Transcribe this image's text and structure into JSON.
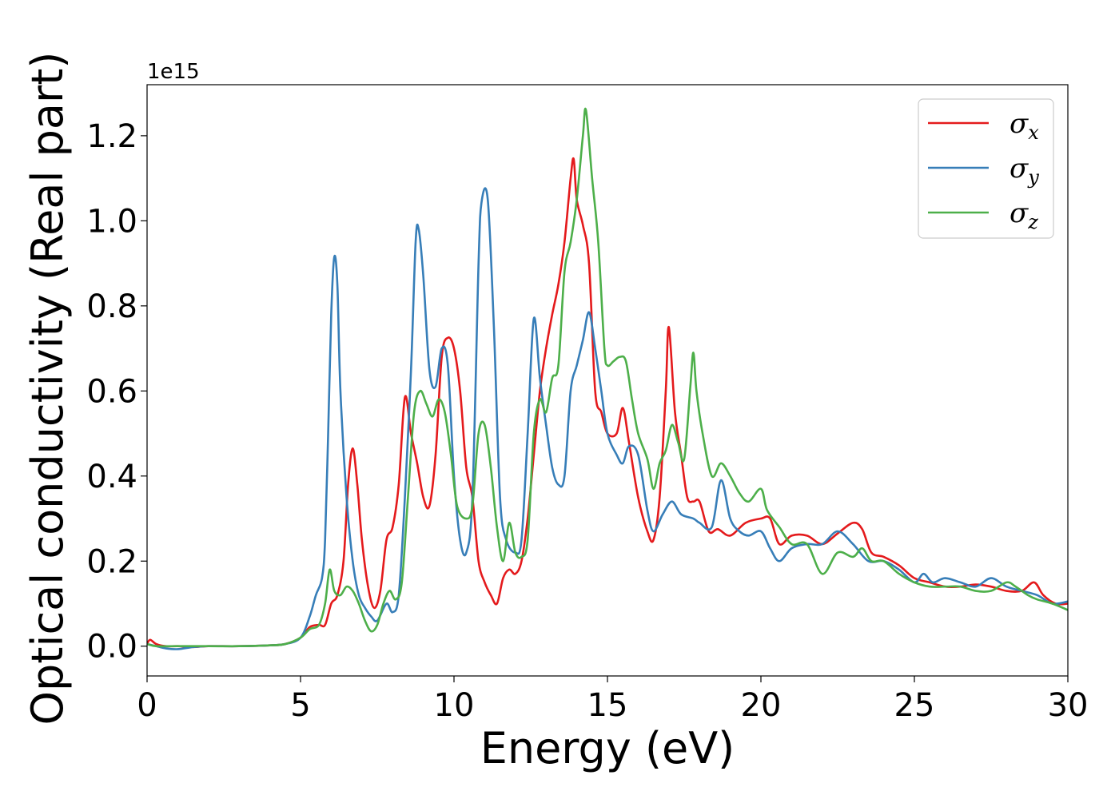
{
  "chart_data": {
    "type": "line",
    "xlabel": "Energy (eV)",
    "ylabel": "Optical conductivity (Real part)",
    "y_offset_label": "1e15",
    "xlim": [
      0,
      30
    ],
    "ylim": [
      -0.07,
      1.32
    ],
    "y_scale_factor": 1000000000000000.0,
    "grid": false,
    "legend_position": "top-right",
    "x_ticks": [
      0,
      5,
      10,
      15,
      20,
      25,
      30
    ],
    "y_ticks": [
      0.0,
      0.2,
      0.4,
      0.6,
      0.8,
      1.0,
      1.2
    ],
    "x_tick_labels": [
      "0",
      "5",
      "10",
      "15",
      "20",
      "25",
      "30"
    ],
    "y_tick_labels": [
      "0.0",
      "0.2",
      "0.4",
      "0.6",
      "0.8",
      "1.0",
      "1.2"
    ],
    "series": [
      {
        "name": "σx",
        "name_base": "σ",
        "name_sub": "x",
        "color": "#e41a1c",
        "points": [
          [
            0,
            0.005
          ],
          [
            0.1,
            0.015
          ],
          [
            0.3,
            0.005
          ],
          [
            0.6,
            0.0
          ],
          [
            1,
            0.0
          ],
          [
            1.5,
            -0.002
          ],
          [
            2,
            0.0
          ],
          [
            3,
            0.0
          ],
          [
            4,
            0.002
          ],
          [
            4.5,
            0.005
          ],
          [
            5,
            0.02
          ],
          [
            5.3,
            0.045
          ],
          [
            5.6,
            0.05
          ],
          [
            5.8,
            0.05
          ],
          [
            6.0,
            0.1
          ],
          [
            6.2,
            0.12
          ],
          [
            6.4,
            0.2
          ],
          [
            6.55,
            0.38
          ],
          [
            6.7,
            0.465
          ],
          [
            6.85,
            0.38
          ],
          [
            7.0,
            0.25
          ],
          [
            7.2,
            0.14
          ],
          [
            7.4,
            0.09
          ],
          [
            7.6,
            0.13
          ],
          [
            7.8,
            0.25
          ],
          [
            8.0,
            0.28
          ],
          [
            8.2,
            0.38
          ],
          [
            8.4,
            0.585
          ],
          [
            8.6,
            0.5
          ],
          [
            8.8,
            0.43
          ],
          [
            9.0,
            0.35
          ],
          [
            9.2,
            0.33
          ],
          [
            9.4,
            0.45
          ],
          [
            9.6,
            0.68
          ],
          [
            9.8,
            0.725
          ],
          [
            10.0,
            0.7
          ],
          [
            10.2,
            0.6
          ],
          [
            10.4,
            0.42
          ],
          [
            10.6,
            0.35
          ],
          [
            10.8,
            0.2
          ],
          [
            11.0,
            0.15
          ],
          [
            11.2,
            0.12
          ],
          [
            11.4,
            0.1
          ],
          [
            11.6,
            0.16
          ],
          [
            11.8,
            0.18
          ],
          [
            12.0,
            0.17
          ],
          [
            12.2,
            0.2
          ],
          [
            12.4,
            0.3
          ],
          [
            12.6,
            0.45
          ],
          [
            12.8,
            0.6
          ],
          [
            13.0,
            0.7
          ],
          [
            13.2,
            0.78
          ],
          [
            13.4,
            0.85
          ],
          [
            13.6,
            0.95
          ],
          [
            13.8,
            1.1
          ],
          [
            13.9,
            1.145
          ],
          [
            14.0,
            1.05
          ],
          [
            14.2,
            0.99
          ],
          [
            14.4,
            0.9
          ],
          [
            14.6,
            0.6
          ],
          [
            14.8,
            0.55
          ],
          [
            15.0,
            0.5
          ],
          [
            15.3,
            0.5
          ],
          [
            15.5,
            0.56
          ],
          [
            15.7,
            0.48
          ],
          [
            16.0,
            0.35
          ],
          [
            16.3,
            0.27
          ],
          [
            16.5,
            0.25
          ],
          [
            16.7,
            0.35
          ],
          [
            16.9,
            0.6
          ],
          [
            17.0,
            0.75
          ],
          [
            17.2,
            0.55
          ],
          [
            17.4,
            0.45
          ],
          [
            17.6,
            0.35
          ],
          [
            17.8,
            0.34
          ],
          [
            18.0,
            0.34
          ],
          [
            18.3,
            0.27
          ],
          [
            18.6,
            0.275
          ],
          [
            19.0,
            0.26
          ],
          [
            19.5,
            0.29
          ],
          [
            20.0,
            0.3
          ],
          [
            20.3,
            0.3
          ],
          [
            20.6,
            0.24
          ],
          [
            21.0,
            0.26
          ],
          [
            21.5,
            0.26
          ],
          [
            22.0,
            0.24
          ],
          [
            22.5,
            0.265
          ],
          [
            23.0,
            0.29
          ],
          [
            23.3,
            0.275
          ],
          [
            23.6,
            0.22
          ],
          [
            24.0,
            0.21
          ],
          [
            24.5,
            0.19
          ],
          [
            25.0,
            0.16
          ],
          [
            25.5,
            0.15
          ],
          [
            26.0,
            0.14
          ],
          [
            26.5,
            0.14
          ],
          [
            27.0,
            0.145
          ],
          [
            27.5,
            0.14
          ],
          [
            28.0,
            0.13
          ],
          [
            28.5,
            0.13
          ],
          [
            28.9,
            0.15
          ],
          [
            29.2,
            0.12
          ],
          [
            29.6,
            0.1
          ],
          [
            30.0,
            0.1
          ]
        ]
      },
      {
        "name": "σy",
        "name_base": "σ",
        "name_sub": "y",
        "color": "#377eb8",
        "points": [
          [
            0,
            0.005
          ],
          [
            0.3,
            0.0
          ],
          [
            0.6,
            -0.005
          ],
          [
            1,
            -0.007
          ],
          [
            1.5,
            -0.002
          ],
          [
            2,
            0.0
          ],
          [
            3,
            0.0
          ],
          [
            4,
            0.002
          ],
          [
            4.5,
            0.005
          ],
          [
            5,
            0.02
          ],
          [
            5.3,
            0.07
          ],
          [
            5.5,
            0.12
          ],
          [
            5.7,
            0.16
          ],
          [
            5.8,
            0.25
          ],
          [
            5.9,
            0.5
          ],
          [
            6.0,
            0.78
          ],
          [
            6.1,
            0.915
          ],
          [
            6.2,
            0.85
          ],
          [
            6.3,
            0.6
          ],
          [
            6.5,
            0.35
          ],
          [
            6.7,
            0.2
          ],
          [
            6.9,
            0.12
          ],
          [
            7.1,
            0.09
          ],
          [
            7.3,
            0.07
          ],
          [
            7.5,
            0.06
          ],
          [
            7.8,
            0.1
          ],
          [
            8.0,
            0.08
          ],
          [
            8.2,
            0.12
          ],
          [
            8.4,
            0.35
          ],
          [
            8.6,
            0.65
          ],
          [
            8.75,
            0.95
          ],
          [
            8.85,
            0.98
          ],
          [
            9.0,
            0.87
          ],
          [
            9.2,
            0.65
          ],
          [
            9.4,
            0.61
          ],
          [
            9.6,
            0.7
          ],
          [
            9.8,
            0.66
          ],
          [
            10.0,
            0.4
          ],
          [
            10.2,
            0.25
          ],
          [
            10.4,
            0.22
          ],
          [
            10.6,
            0.35
          ],
          [
            10.8,
            0.9
          ],
          [
            10.9,
            1.045
          ],
          [
            11.1,
            1.05
          ],
          [
            11.3,
            0.75
          ],
          [
            11.5,
            0.35
          ],
          [
            11.7,
            0.25
          ],
          [
            12.0,
            0.22
          ],
          [
            12.2,
            0.25
          ],
          [
            12.4,
            0.5
          ],
          [
            12.6,
            0.77
          ],
          [
            12.8,
            0.63
          ],
          [
            13.0,
            0.52
          ],
          [
            13.2,
            0.42
          ],
          [
            13.4,
            0.38
          ],
          [
            13.6,
            0.4
          ],
          [
            13.8,
            0.6
          ],
          [
            14.0,
            0.66
          ],
          [
            14.2,
            0.72
          ],
          [
            14.4,
            0.785
          ],
          [
            14.6,
            0.7
          ],
          [
            14.8,
            0.6
          ],
          [
            15.0,
            0.5
          ],
          [
            15.3,
            0.45
          ],
          [
            15.5,
            0.43
          ],
          [
            15.7,
            0.47
          ],
          [
            16.0,
            0.45
          ],
          [
            16.3,
            0.32
          ],
          [
            16.5,
            0.27
          ],
          [
            16.8,
            0.31
          ],
          [
            17.1,
            0.34
          ],
          [
            17.4,
            0.31
          ],
          [
            17.8,
            0.3
          ],
          [
            18.0,
            0.29
          ],
          [
            18.4,
            0.28
          ],
          [
            18.7,
            0.39
          ],
          [
            19.0,
            0.3
          ],
          [
            19.3,
            0.27
          ],
          [
            19.6,
            0.26
          ],
          [
            20.0,
            0.27
          ],
          [
            20.3,
            0.23
          ],
          [
            20.6,
            0.2
          ],
          [
            21.0,
            0.23
          ],
          [
            21.5,
            0.24
          ],
          [
            22.0,
            0.24
          ],
          [
            22.5,
            0.27
          ],
          [
            23.0,
            0.24
          ],
          [
            23.5,
            0.2
          ],
          [
            24.0,
            0.2
          ],
          [
            24.5,
            0.18
          ],
          [
            25.0,
            0.15
          ],
          [
            25.3,
            0.17
          ],
          [
            25.6,
            0.15
          ],
          [
            26.0,
            0.16
          ],
          [
            26.5,
            0.15
          ],
          [
            27.0,
            0.14
          ],
          [
            27.5,
            0.16
          ],
          [
            28.0,
            0.14
          ],
          [
            28.5,
            0.13
          ],
          [
            29.0,
            0.12
          ],
          [
            29.5,
            0.1
          ],
          [
            30.0,
            0.105
          ]
        ]
      },
      {
        "name": "σz",
        "name_base": "σ",
        "name_sub": "z",
        "color": "#4daf4a",
        "points": [
          [
            0,
            0.005
          ],
          [
            0.3,
            0.0
          ],
          [
            1,
            0.0
          ],
          [
            2,
            0.0
          ],
          [
            3,
            0.0
          ],
          [
            4,
            0.002
          ],
          [
            4.5,
            0.005
          ],
          [
            5,
            0.02
          ],
          [
            5.3,
            0.04
          ],
          [
            5.6,
            0.05
          ],
          [
            5.8,
            0.1
          ],
          [
            5.95,
            0.18
          ],
          [
            6.1,
            0.13
          ],
          [
            6.3,
            0.12
          ],
          [
            6.5,
            0.14
          ],
          [
            6.7,
            0.13
          ],
          [
            6.9,
            0.1
          ],
          [
            7.1,
            0.06
          ],
          [
            7.3,
            0.035
          ],
          [
            7.5,
            0.05
          ],
          [
            7.7,
            0.1
          ],
          [
            7.9,
            0.13
          ],
          [
            8.1,
            0.11
          ],
          [
            8.3,
            0.15
          ],
          [
            8.5,
            0.35
          ],
          [
            8.7,
            0.55
          ],
          [
            8.9,
            0.6
          ],
          [
            9.1,
            0.57
          ],
          [
            9.3,
            0.54
          ],
          [
            9.5,
            0.58
          ],
          [
            9.7,
            0.55
          ],
          [
            9.9,
            0.45
          ],
          [
            10.1,
            0.33
          ],
          [
            10.4,
            0.3
          ],
          [
            10.6,
            0.33
          ],
          [
            10.8,
            0.5
          ],
          [
            11.0,
            0.52
          ],
          [
            11.2,
            0.42
          ],
          [
            11.4,
            0.28
          ],
          [
            11.6,
            0.2
          ],
          [
            11.8,
            0.29
          ],
          [
            12.0,
            0.22
          ],
          [
            12.2,
            0.21
          ],
          [
            12.4,
            0.25
          ],
          [
            12.6,
            0.5
          ],
          [
            12.8,
            0.58
          ],
          [
            13.0,
            0.55
          ],
          [
            13.2,
            0.63
          ],
          [
            13.4,
            0.66
          ],
          [
            13.6,
            0.88
          ],
          [
            13.8,
            0.95
          ],
          [
            14.0,
            1.05
          ],
          [
            14.2,
            1.2
          ],
          [
            14.3,
            1.26
          ],
          [
            14.5,
            1.1
          ],
          [
            14.7,
            0.95
          ],
          [
            14.9,
            0.7
          ],
          [
            15.0,
            0.66
          ],
          [
            15.2,
            0.67
          ],
          [
            15.4,
            0.68
          ],
          [
            15.6,
            0.67
          ],
          [
            15.8,
            0.58
          ],
          [
            16.0,
            0.5
          ],
          [
            16.3,
            0.44
          ],
          [
            16.5,
            0.37
          ],
          [
            16.7,
            0.43
          ],
          [
            16.9,
            0.46
          ],
          [
            17.1,
            0.52
          ],
          [
            17.3,
            0.48
          ],
          [
            17.5,
            0.44
          ],
          [
            17.7,
            0.61
          ],
          [
            17.8,
            0.69
          ],
          [
            17.9,
            0.6
          ],
          [
            18.1,
            0.5
          ],
          [
            18.4,
            0.4
          ],
          [
            18.7,
            0.43
          ],
          [
            19.0,
            0.4
          ],
          [
            19.3,
            0.36
          ],
          [
            19.6,
            0.34
          ],
          [
            20.0,
            0.37
          ],
          [
            20.2,
            0.32
          ],
          [
            20.6,
            0.28
          ],
          [
            21.0,
            0.24
          ],
          [
            21.5,
            0.24
          ],
          [
            22.0,
            0.17
          ],
          [
            22.5,
            0.22
          ],
          [
            23.0,
            0.21
          ],
          [
            23.3,
            0.23
          ],
          [
            23.6,
            0.2
          ],
          [
            24.0,
            0.2
          ],
          [
            24.5,
            0.17
          ],
          [
            25.0,
            0.15
          ],
          [
            25.5,
            0.14
          ],
          [
            26.0,
            0.14
          ],
          [
            26.5,
            0.14
          ],
          [
            27.0,
            0.13
          ],
          [
            27.5,
            0.13
          ],
          [
            28.0,
            0.15
          ],
          [
            28.3,
            0.14
          ],
          [
            28.7,
            0.12
          ],
          [
            29.0,
            0.11
          ],
          [
            29.5,
            0.1
          ],
          [
            30.0,
            0.085
          ]
        ]
      }
    ]
  }
}
